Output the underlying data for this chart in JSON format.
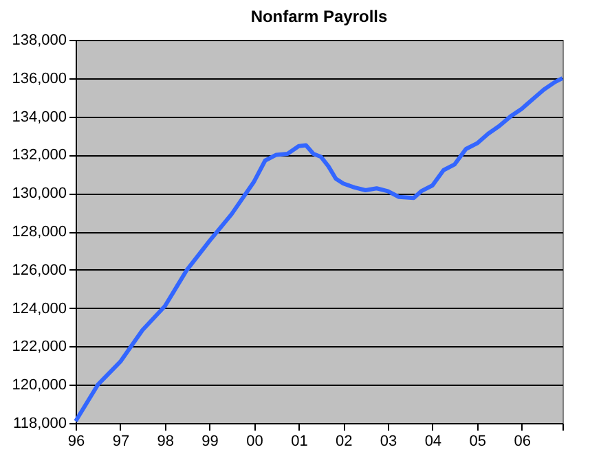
{
  "chart_data": {
    "type": "line",
    "title": "Nonfarm Payrolls",
    "x": [
      "1996-01",
      "1996-07",
      "1997-01",
      "1997-07",
      "1998-01",
      "1998-07",
      "1999-01",
      "1999-07",
      "2000-01",
      "2000-04",
      "2000-07",
      "2000-10",
      "2001-01",
      "2001-03",
      "2001-05",
      "2001-07",
      "2001-09",
      "2001-11",
      "2002-01",
      "2002-04",
      "2002-07",
      "2002-10",
      "2003-01",
      "2003-04",
      "2003-08",
      "2003-10",
      "2004-01",
      "2004-04",
      "2004-07",
      "2004-10",
      "2005-01",
      "2005-04",
      "2005-07",
      "2005-10",
      "2006-01",
      "2006-04",
      "2006-07",
      "2006-10",
      "2006-12"
    ],
    "series": [
      {
        "color": "#3366ff",
        "values": [
          118100,
          120000,
          121200,
          122850,
          124100,
          126000,
          127500,
          128900,
          130600,
          131700,
          132000,
          132050,
          132450,
          132500,
          132050,
          131900,
          131400,
          130750,
          130500,
          130300,
          130150,
          130250,
          130100,
          129800,
          129750,
          130100,
          130400,
          131200,
          131500,
          132300,
          132600,
          133100,
          133500,
          134000,
          134400,
          134900,
          135400,
          135800,
          136000
        ]
      }
    ],
    "xlim": [
      "1996-01",
      "2006-12"
    ],
    "xticks": [
      {
        "value": "1996",
        "label": "96"
      },
      {
        "value": "1997",
        "label": "97"
      },
      {
        "value": "1998",
        "label": "98"
      },
      {
        "value": "1999",
        "label": "99"
      },
      {
        "value": "2000",
        "label": "00"
      },
      {
        "value": "2001",
        "label": "01"
      },
      {
        "value": "2002",
        "label": "02"
      },
      {
        "value": "2003",
        "label": "03"
      },
      {
        "value": "2004",
        "label": "04"
      },
      {
        "value": "2005",
        "label": "05"
      },
      {
        "value": "2006",
        "label": "06"
      },
      {
        "value": "2006-12",
        "label": null
      }
    ],
    "ylim": [
      118000,
      138000
    ],
    "yticks": [
      {
        "value": 118000,
        "label": "118,000"
      },
      {
        "value": 120000,
        "label": "120,000"
      },
      {
        "value": 122000,
        "label": "122,000"
      },
      {
        "value": 124000,
        "label": "124,000"
      },
      {
        "value": 126000,
        "label": "126,000"
      },
      {
        "value": 128000,
        "label": "128,000"
      },
      {
        "value": 130000,
        "label": "130,000"
      },
      {
        "value": 132000,
        "label": "132,000"
      },
      {
        "value": 134000,
        "label": "134,000"
      },
      {
        "value": 136000,
        "label": "136,000"
      },
      {
        "value": 138000,
        "label": "138,000"
      }
    ],
    "grid": "y",
    "legend": false,
    "marker": "none",
    "line_style": "solid"
  }
}
